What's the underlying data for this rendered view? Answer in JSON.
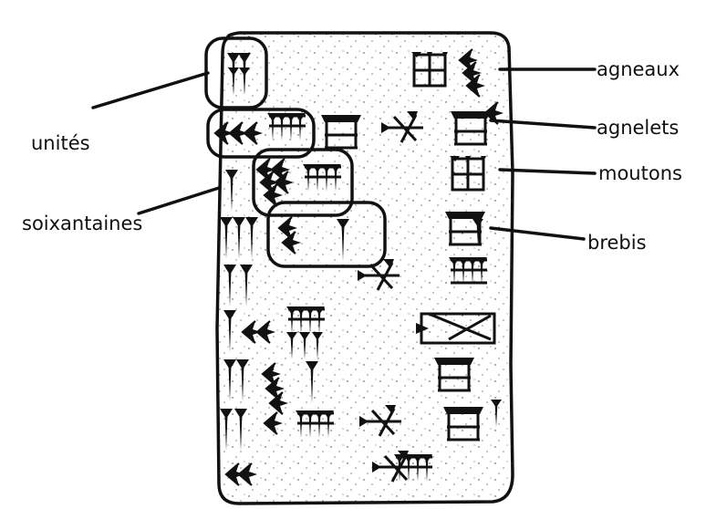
{
  "labels": {
    "units": "unités",
    "sixties": "soixantaines",
    "lambs": "agneaux",
    "young_lambs": "agnelets",
    "sheep": "moutons",
    "ewes": "brebis"
  },
  "colors": {
    "ink": "#111111",
    "tablet": "#ffffff",
    "background": "#ffffff"
  },
  "tablet": {
    "texture": "stippled clay"
  }
}
